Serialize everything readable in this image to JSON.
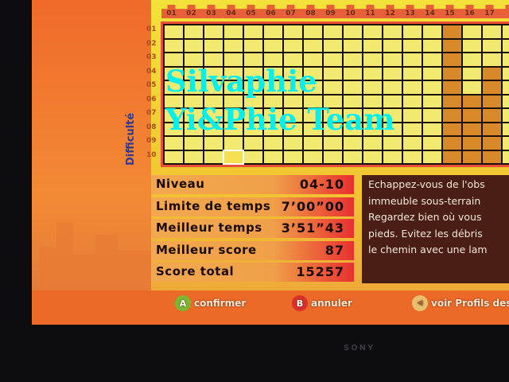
{
  "grid": {
    "columns": [
      "01",
      "02",
      "03",
      "04",
      "05",
      "06",
      "07",
      "08",
      "09",
      "10",
      "11",
      "12",
      "13",
      "14",
      "15",
      "16",
      "17",
      ""
    ],
    "rows": [
      "01",
      "02",
      "03",
      "04",
      "05",
      "06",
      "07",
      "08",
      "09",
      "10"
    ],
    "axis_label": "Difficulté",
    "selected": {
      "column": "04",
      "row": "10"
    },
    "completed_columns": {
      "15": "all",
      "16": "06-10",
      "17": "04-10"
    }
  },
  "stats": [
    {
      "label": "Niveau",
      "value": "04-10"
    },
    {
      "label": "Limite de temps",
      "value": "7’00”00"
    },
    {
      "label": "Meilleur temps",
      "value": "3’51”43"
    },
    {
      "label": "Meilleur score",
      "value": "87"
    },
    {
      "label": "Score total",
      "value": "15257"
    }
  ],
  "description": [
    "Echappez-vous de l'obs",
    "immeuble sous-terrain",
    "Regardez bien où vous",
    "pieds. Evitez les débris",
    "le chemin avec une lam"
  ],
  "buttons": [
    {
      "key": "A",
      "label": "confirmer",
      "color": "#7ab832"
    },
    {
      "key": "B",
      "label": "annuler",
      "color": "#d8302a"
    },
    {
      "key": "BACK",
      "label": "voir Profils des C",
      "color": "#e8c070"
    }
  ],
  "watermark": [
    "Silvaphie",
    "Yi&Phie Team"
  ],
  "tv_brand": "SONY"
}
